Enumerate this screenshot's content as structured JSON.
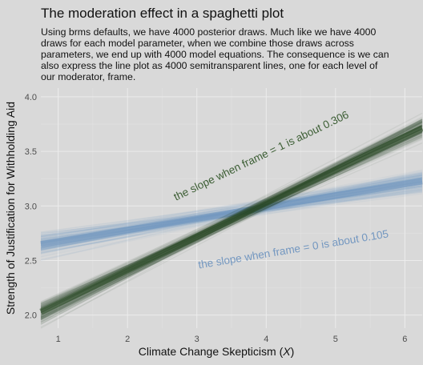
{
  "chart_data": {
    "type": "line",
    "title": "The moderation effect in a spaghetti plot",
    "subtitle": [
      "Using brms defaults, we have 4000 posterior draws. Much like we have 4000",
      "draws for each model parameter, when we combine those draws across",
      "parameters, we end up with 4000 model equations. The consequence is we can",
      "also express the line plot as 4000 semitransparent lines, one for each level of",
      "our moderator, frame."
    ],
    "xlabel_text": "Climate Change Skepticism (",
    "xlabel_var": "X",
    "xlabel_close": ")",
    "ylabel": "Strength of Justification for Withholding Aid",
    "xlim": [
      0.75,
      6.25
    ],
    "ylim": [
      1.88,
      4.08
    ],
    "x_ticks": [
      "1",
      "2",
      "3",
      "4",
      "5",
      "6"
    ],
    "y_ticks": [
      "2.0",
      "2.5",
      "3.0",
      "3.5",
      "4.0"
    ],
    "grid": true,
    "series": [
      {
        "frame": 0,
        "color": "#7397c0",
        "intercept": 2.57,
        "slope": 0.105,
        "x_range": [
          0.75,
          6.25
        ],
        "annotation": "the slope when frame = 0 is about 0.105",
        "annotation_x": 4.4,
        "annotation_y": 2.57,
        "annotation_color": "#7397c0"
      },
      {
        "frame": 1,
        "color": "#2c4c27",
        "intercept": 1.8,
        "slope": 0.306,
        "x_range": [
          0.75,
          6.25
        ],
        "annotation": "the slope when frame = 1 is about 0.306",
        "annotation_x": 3.95,
        "annotation_y": 3.43,
        "annotation_color": "#3c5e34"
      }
    ]
  }
}
